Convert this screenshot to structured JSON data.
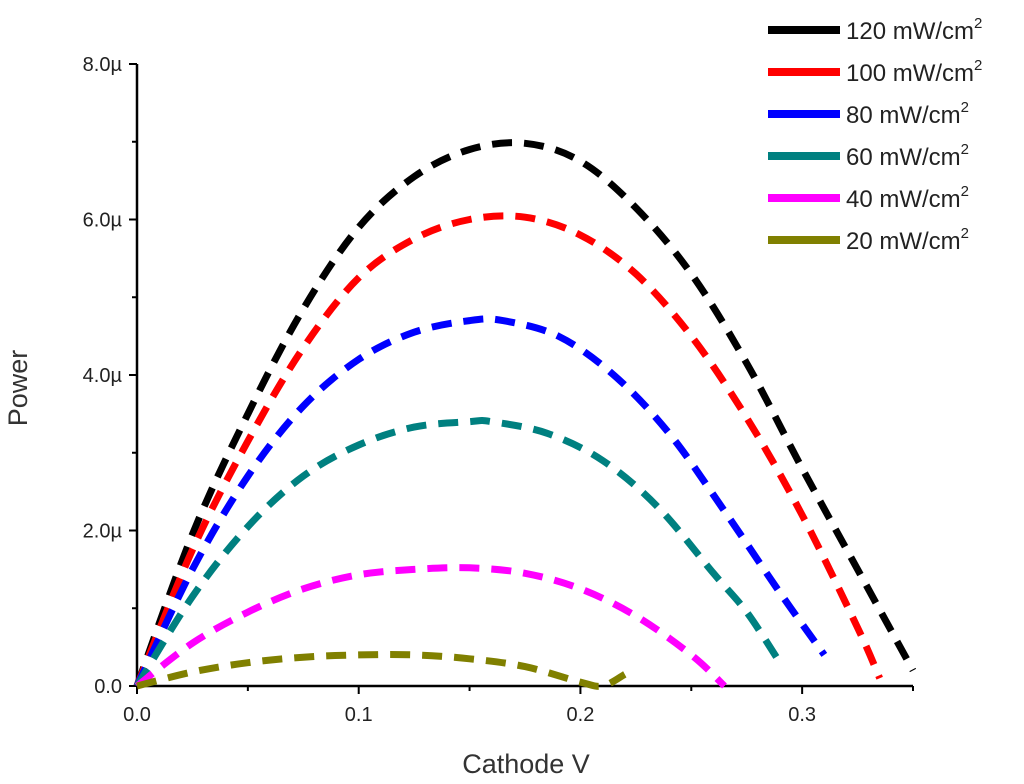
{
  "chart_data": {
    "type": "line",
    "title": "",
    "xlabel": "Cathode V",
    "ylabel": "Power",
    "xlim": [
      0.0,
      0.35
    ],
    "ylim": [
      0.0,
      8.0
    ],
    "y_unit_suffix": "µ",
    "x_ticks": [
      "0.0",
      "0.1",
      "0.2",
      "0.3"
    ],
    "y_ticks": [
      "0.0",
      "2.0µ",
      "4.0µ",
      "6.0µ",
      "8.0µ"
    ],
    "legend_position": "top-right",
    "grid": false,
    "series": [
      {
        "name": "120 mW/cm",
        "sup": "2",
        "color": "#000000",
        "x": [
          0,
          0.025,
          0.05,
          0.075,
          0.1,
          0.125,
          0.15,
          0.175,
          0.2,
          0.225,
          0.25,
          0.275,
          0.3,
          0.325,
          0.35
        ],
        "y": [
          0,
          1.95,
          3.5,
          4.85,
          5.9,
          6.55,
          6.9,
          6.98,
          6.75,
          6.15,
          5.3,
          4.15,
          2.8,
          1.5,
          0.2
        ]
      },
      {
        "name": "100 mW/cm",
        "sup": "2",
        "color": "#ff0000",
        "x": [
          0,
          0.025,
          0.05,
          0.075,
          0.1,
          0.125,
          0.15,
          0.175,
          0.2,
          0.225,
          0.25,
          0.275,
          0.3,
          0.325,
          0.335
        ],
        "y": [
          0,
          1.75,
          3.15,
          4.35,
          5.25,
          5.75,
          6.0,
          6.03,
          5.8,
          5.3,
          4.5,
          3.45,
          2.2,
          0.75,
          0.1
        ]
      },
      {
        "name": "80 mW/cm",
        "sup": "2",
        "color": "#0000ff",
        "x": [
          0,
          0.025,
          0.05,
          0.075,
          0.1,
          0.125,
          0.15,
          0.165,
          0.19,
          0.215,
          0.24,
          0.265,
          0.29,
          0.31
        ],
        "y": [
          0,
          1.5,
          2.7,
          3.6,
          4.2,
          4.55,
          4.7,
          4.7,
          4.5,
          4.0,
          3.25,
          2.25,
          1.2,
          0.4
        ]
      },
      {
        "name": "60 mW/cm",
        "sup": "2",
        "color": "#008080",
        "x": [
          0,
          0.025,
          0.05,
          0.075,
          0.1,
          0.125,
          0.15,
          0.16,
          0.185,
          0.21,
          0.235,
          0.26,
          0.275,
          0.29
        ],
        "y": [
          0,
          1.15,
          2.05,
          2.7,
          3.1,
          3.33,
          3.4,
          3.4,
          3.25,
          2.9,
          2.3,
          1.45,
          0.95,
          0.3
        ]
      },
      {
        "name": "40 mW/cm",
        "sup": "2",
        "color": "#ff00ff",
        "x": [
          0,
          0.025,
          0.05,
          0.075,
          0.1,
          0.125,
          0.15,
          0.175,
          0.2,
          0.225,
          0.25,
          0.265
        ],
        "y": [
          0,
          0.55,
          0.95,
          1.25,
          1.43,
          1.5,
          1.52,
          1.45,
          1.25,
          0.9,
          0.4,
          0.0
        ]
      },
      {
        "name": "20 mW/cm",
        "sup": "2",
        "color": "#808000",
        "x": [
          0,
          0.025,
          0.05,
          0.075,
          0.1,
          0.125,
          0.15,
          0.175,
          0.2,
          0.21,
          0.22
        ],
        "y": [
          0,
          0.18,
          0.3,
          0.37,
          0.4,
          0.4,
          0.35,
          0.25,
          0.05,
          0.0,
          0.15
        ]
      }
    ]
  }
}
